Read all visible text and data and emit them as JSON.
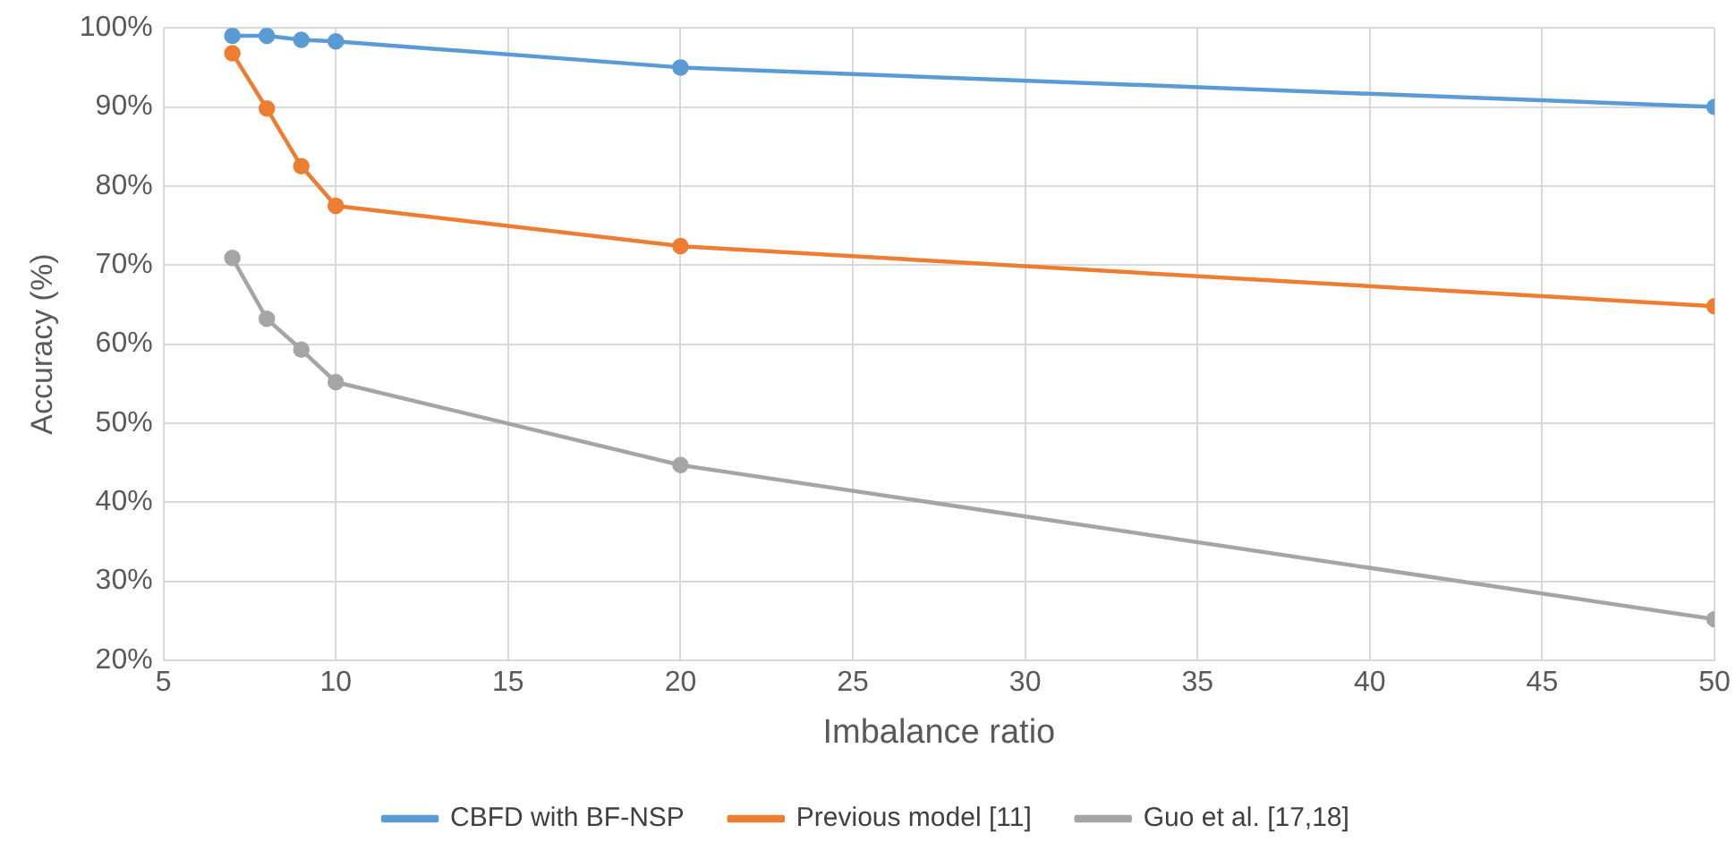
{
  "chart_data": {
    "type": "line",
    "xlabel": "Imbalance ratio",
    "ylabel": "Accuracy (%)",
    "x": [
      7,
      8,
      9,
      10,
      20,
      50
    ],
    "series": [
      {
        "name": "CBFD with BF-NSP",
        "color": "#5b9bd5",
        "values": [
          99,
          99,
          98.5,
          98.3,
          95,
          90
        ]
      },
      {
        "name": "Previous model [11]",
        "color": "#ed7d31",
        "values": [
          96.8,
          89.8,
          82.5,
          77.5,
          72.4,
          64.8
        ]
      },
      {
        "name": "Guo et al. [17,18]",
        "color": "#a5a5a5",
        "values": [
          70.9,
          63.2,
          59.3,
          55.2,
          44.7,
          25.2
        ]
      }
    ],
    "xlim": [
      5,
      50
    ],
    "xticks": [
      5,
      10,
      15,
      20,
      25,
      30,
      35,
      40,
      45,
      50
    ],
    "ylim": [
      20,
      100
    ],
    "yticks": [
      {
        "value": 20,
        "label": "20%"
      },
      {
        "value": 30,
        "label": "30%"
      },
      {
        "value": 40,
        "label": "40%"
      },
      {
        "value": 50,
        "label": "50%"
      },
      {
        "value": 60,
        "label": "60%"
      },
      {
        "value": 70,
        "label": "70%"
      },
      {
        "value": 80,
        "label": "80%"
      },
      {
        "value": 90,
        "label": "90%"
      },
      {
        "value": 100,
        "label": "100%"
      }
    ],
    "grid": true,
    "legend": "bottom",
    "marker": "circle",
    "line_style": "solid"
  }
}
